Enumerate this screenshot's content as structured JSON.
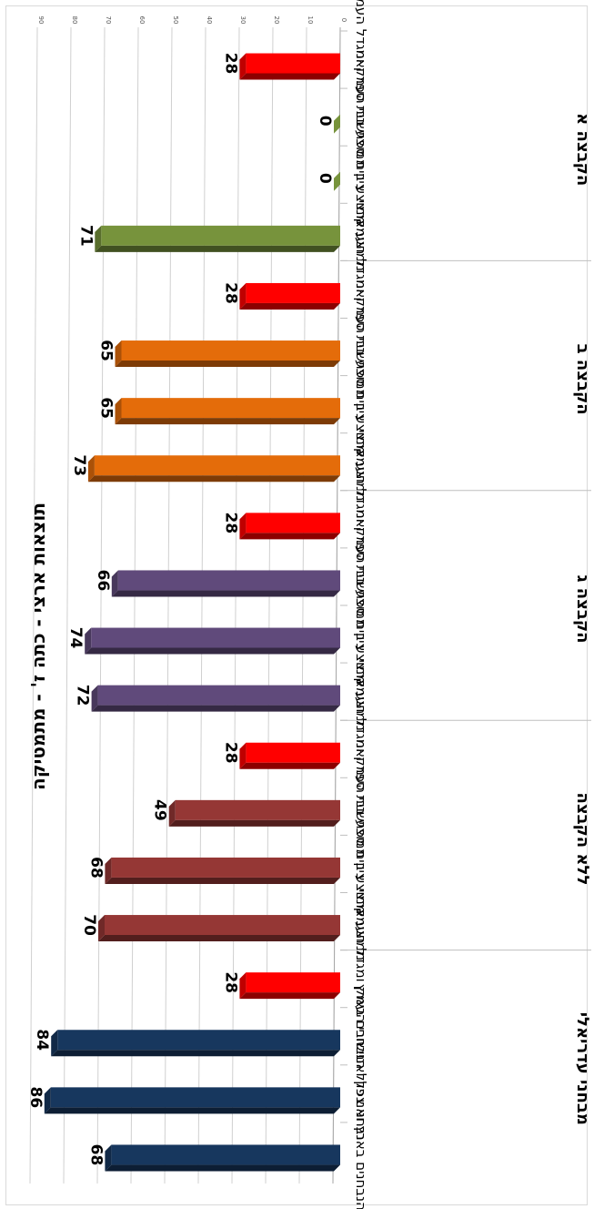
{
  "chart_data": {
    "type": "bar",
    "orientation": "horizontal",
    "title": "תוצאות ארצי - כתה ז' - מתמטיקה",
    "xlim": [
      0,
      90
    ],
    "xticks": [
      0,
      10,
      20,
      30,
      40,
      50,
      60,
      70,
      80,
      90
    ],
    "groups": [
      {
        "name": "הקבצה א",
        "color": "#77933c",
        "bars": [
          {
            "label": "יישובי העמק ומגדל העמק",
            "value": 28,
            "color": "#ff0000"
          },
          {
            "label": "ציון ממוצע בית ספר ואנו",
            "value": 0
          },
          {
            "label": "ממוצע בית ספר",
            "value": 0
          },
          {
            "label": "ממוצע ארצי",
            "value": 71
          }
        ]
      },
      {
        "name": "הקבצה ב",
        "color": "#e46c0a",
        "bars": [
          {
            "label": "יישובי העמק ומגדל העמק",
            "value": 28,
            "color": "#ff0000"
          },
          {
            "label": "ציון ממוצע בית ספר ואנו",
            "value": 65
          },
          {
            "label": "ממוצע בית ספר",
            "value": 65
          },
          {
            "label": "ממוצע ארצי",
            "value": 73
          }
        ]
      },
      {
        "name": "הקבצה ג",
        "color": "#604a7b",
        "bars": [
          {
            "label": "יישובי העמק ומגדל העמק",
            "value": 28,
            "color": "#ff0000"
          },
          {
            "label": "ציון ממוצע בית ספר ואנו",
            "value": 66
          },
          {
            "label": "ממוצע בית ספר",
            "value": 74
          },
          {
            "label": "ממוצע ארצי",
            "value": 72
          }
        ]
      },
      {
        "name": "ללא הקבצה",
        "color": "#953735",
        "bars": [
          {
            "label": "יישובי העמק ומגדל העמק",
            "value": 28,
            "color": "#ff0000"
          },
          {
            "label": "ציון ממוצע בית ספר ואנו",
            "value": 49
          },
          {
            "label": "ממוצע בית ספר",
            "value": 68
          },
          {
            "label": "ממוצע ארצי",
            "value": 70
          }
        ]
      },
      {
        "name": "מבחני עדריאלי",
        "color": "#17375e",
        "bars": [
          {
            "label": "יישובי העמק ומגדל העמק",
            "value": 28,
            "color": "#ff0000"
          },
          {
            "label": "כלל הנבחנים בארץ",
            "value": 84
          },
          {
            "label": "נבחני צפון ואנו",
            "value": 86
          },
          {
            "label": "הנבחנים בארץ ואנו",
            "value": 68
          }
        ]
      }
    ],
    "grid": true
  }
}
